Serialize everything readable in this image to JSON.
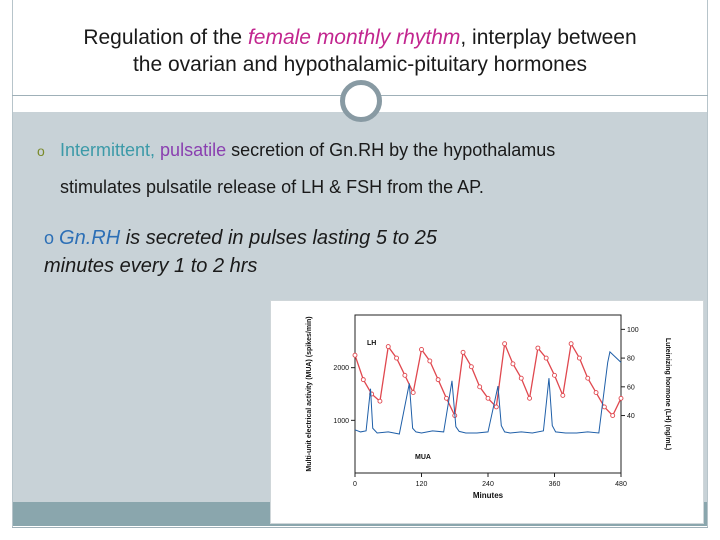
{
  "slide": {
    "title_part1": "Regulation of the ",
    "title_highlight": "female monthly rhythm",
    "title_part2": ", interplay between",
    "title_line2": "the ovarian and hypothalamic-pituitary hormones",
    "bullet1_intermittent": "Intermittent, ",
    "bullet1_pulsatile": "pulsatile",
    "bullet1_rest": " secretion of Gn.RH by the hypothalamus",
    "bullet1_line2": "stimulates pulsatile release of LH & FSH from the AP.",
    "bullet2_marker": "o ",
    "bullet2_gnrh": "Gn.RH",
    "bullet2_rest": " is secreted in pulses lasting 5 to 25",
    "bullet2_line2": "minutes every 1 to 2 hrs",
    "colors": {
      "title_highlight": "#c2268f",
      "pulsatile": "#8a3fb0",
      "intermittent": "#3c9aa8",
      "gnrh": "#2c6fb6",
      "lh_series": "#e0484f",
      "mua_series": "#1f5fa8",
      "panel": "#c8d2d7",
      "strip": "#8aa6ad"
    }
  },
  "chart_data": {
    "type": "line",
    "xlabel": "Minutes",
    "ylabel": "Multi-unit electrical activity (MUA) (spikes/min)",
    "y2label": "Luteinizing hormone (LH) (ng/mL)",
    "x_ticks": [
      "0",
      "120",
      "240",
      "360",
      "480"
    ],
    "y_ticks": [
      "1000",
      "2000"
    ],
    "y2_ticks": [
      "40",
      "60",
      "80",
      "100"
    ],
    "xlim": [
      0,
      480
    ],
    "ylim": [
      0,
      3000
    ],
    "y2lim": [
      0,
      110
    ],
    "series": [
      {
        "name": "LH",
        "axis": "right",
        "x": [
          0,
          15,
          30,
          45,
          60,
          75,
          90,
          105,
          120,
          135,
          150,
          165,
          180,
          195,
          210,
          225,
          240,
          255,
          270,
          285,
          300,
          315,
          330,
          345,
          360,
          375,
          390,
          405,
          420,
          435,
          450,
          465,
          480
        ],
        "values": [
          82,
          65,
          55,
          50,
          88,
          80,
          68,
          56,
          86,
          78,
          65,
          52,
          40,
          84,
          74,
          60,
          52,
          46,
          90,
          76,
          66,
          52,
          87,
          80,
          68,
          54,
          90,
          80,
          66,
          56,
          46,
          40,
          52
        ]
      },
      {
        "name": "MUA",
        "axis": "left",
        "x": [
          0,
          10,
          20,
          28,
          32,
          40,
          60,
          80,
          98,
          104,
          110,
          120,
          140,
          160,
          175,
          182,
          188,
          200,
          220,
          240,
          258,
          264,
          270,
          280,
          300,
          320,
          340,
          350,
          356,
          362,
          380,
          400,
          420,
          440,
          456,
          460,
          470,
          480
        ],
        "values": [
          820,
          780,
          800,
          1600,
          850,
          760,
          780,
          740,
          1700,
          850,
          780,
          760,
          800,
          780,
          1750,
          880,
          790,
          760,
          760,
          780,
          1650,
          900,
          780,
          760,
          780,
          760,
          800,
          1800,
          900,
          780,
          760,
          760,
          780,
          760,
          2100,
          2300,
          2200,
          2100
        ]
      }
    ],
    "legend": [
      "LH",
      "MUA"
    ]
  }
}
